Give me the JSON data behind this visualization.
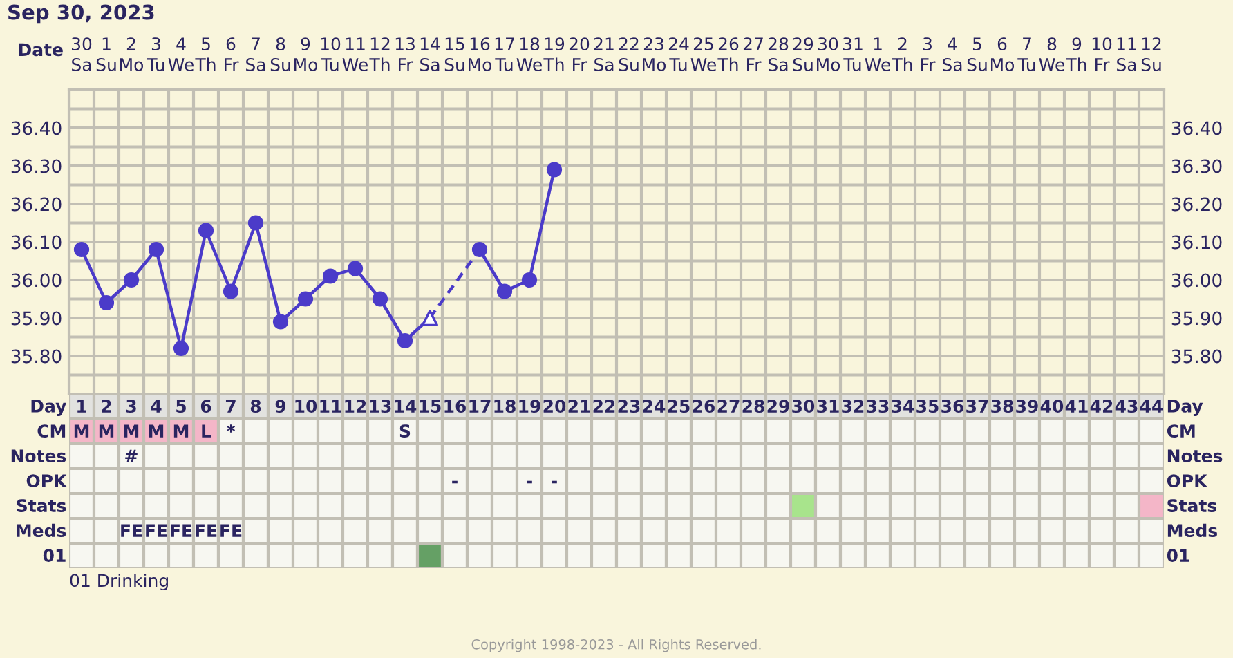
{
  "chart_data": [
    {
      "type": "line",
      "title": "Sep 30, 2023",
      "xlabel": "Date",
      "categories": [
        "30\nSa",
        "1\nSu",
        "2\nMo",
        "3\nTu",
        "4\nWe",
        "5\nTh",
        "6\nFr",
        "7\nSa",
        "8\nSu",
        "9\nMo",
        "10\nTu",
        "11\nWe",
        "12\nTh",
        "13\nFr",
        "14\nSa",
        "15\nSu",
        "16\nMo",
        "17\nTu",
        "18\nWe",
        "19\nTh",
        "20\nFr",
        "21\nSa",
        "22\nSu",
        "23\nMo",
        "24\nTu",
        "25\nWe",
        "26\nTh",
        "27\nFr",
        "28\nSa",
        "29\nSu",
        "30\nMo",
        "31\nTu",
        "1\nWe",
        "2\nTh",
        "3\nFr",
        "4\nSa",
        "5\nSu",
        "6\nMo",
        "7\nTu",
        "8\nWe",
        "9\nTh",
        "10\nFr",
        "11\nSa",
        "12\nSu"
      ],
      "series": [
        {
          "color": "#4b3bc9",
          "marker": "circle",
          "line_style": "solid",
          "values": [
            36.08,
            35.94,
            36.0,
            36.08,
            35.82,
            36.13,
            35.97,
            36.15,
            35.89,
            35.95,
            36.01,
            36.03,
            35.95,
            35.84,
            null,
            null,
            null,
            null,
            null,
            null,
            null,
            null,
            null,
            null,
            null,
            null,
            null,
            null,
            null,
            null,
            null,
            null,
            null,
            null,
            null,
            null,
            null,
            null,
            null,
            null,
            null,
            null,
            null,
            null
          ]
        },
        {
          "color": "#4b3bc9",
          "marker": "circle",
          "line_style": "solid",
          "values": [
            null,
            null,
            null,
            null,
            null,
            null,
            null,
            null,
            null,
            null,
            null,
            null,
            null,
            null,
            null,
            null,
            36.08,
            35.97,
            36.0,
            36.29,
            null,
            null,
            null,
            null,
            null,
            null,
            null,
            null,
            null,
            null,
            null,
            null,
            null,
            null,
            null,
            null,
            null,
            null,
            null,
            null,
            null,
            null,
            null,
            null
          ]
        },
        {
          "color": "#4b3bc9",
          "line_style": "solid",
          "values": [
            null,
            null,
            null,
            null,
            null,
            null,
            null,
            null,
            null,
            null,
            null,
            null,
            null,
            35.84,
            35.9,
            null,
            null,
            null,
            null,
            null,
            null,
            null,
            null,
            null,
            null,
            null,
            null,
            null,
            null,
            null,
            null,
            null,
            null,
            null,
            null,
            null,
            null,
            null,
            null,
            null,
            null,
            null,
            null,
            null
          ]
        },
        {
          "color": "#4b3bc9",
          "line_style": "dashed",
          "values": [
            null,
            null,
            null,
            null,
            null,
            null,
            null,
            null,
            null,
            null,
            null,
            null,
            null,
            null,
            35.9,
            null,
            36.08,
            null,
            null,
            null,
            null,
            null,
            null,
            null,
            null,
            null,
            null,
            null,
            null,
            null,
            null,
            null,
            null,
            null,
            null,
            null,
            null,
            null,
            null,
            null,
            null,
            null,
            null,
            null
          ]
        },
        {
          "type": "scatter",
          "color": "#4b3bc9",
          "marker": "triangle",
          "values": [
            null,
            null,
            null,
            null,
            null,
            null,
            null,
            null,
            null,
            null,
            null,
            null,
            null,
            null,
            35.9,
            null,
            null,
            null,
            null,
            null,
            null,
            null,
            null,
            null,
            null,
            null,
            null,
            null,
            null,
            null,
            null,
            null,
            null,
            null,
            null,
            null,
            null,
            null,
            null,
            null,
            null,
            null,
            null,
            null
          ]
        }
      ],
      "ylim": [
        35.7,
        36.5
      ],
      "yticks": [
        {
          "value": 35.75,
          "label": null
        },
        {
          "value": 35.8,
          "label": "35.80"
        },
        {
          "value": 35.85,
          "label": null
        },
        {
          "value": 35.9,
          "label": "35.90"
        },
        {
          "value": 35.95,
          "label": null
        },
        {
          "value": 36.0,
          "label": "36.00"
        },
        {
          "value": 36.05,
          "label": null
        },
        {
          "value": 36.1,
          "label": "36.10"
        },
        {
          "value": 36.15,
          "label": null
        },
        {
          "value": 36.2,
          "label": "36.20"
        },
        {
          "value": 36.25,
          "label": null
        },
        {
          "value": 36.3,
          "label": "36.30"
        },
        {
          "value": 36.35,
          "label": null
        },
        {
          "value": 36.4,
          "label": "36.40"
        },
        {
          "value": 36.45,
          "label": null
        }
      ],
      "y2lim": [
        35.7,
        36.5
      ],
      "y2ticks": [
        {
          "value": 35.8,
          "label": "35.80"
        },
        {
          "value": 35.9,
          "label": "35.90"
        },
        {
          "value": 36.0,
          "label": "36.00"
        },
        {
          "value": 36.1,
          "label": "36.10"
        },
        {
          "value": 36.2,
          "label": "36.20"
        },
        {
          "value": 36.3,
          "label": "36.30"
        },
        {
          "value": 36.4,
          "label": "36.40"
        }
      ],
      "grid": true
    },
    {
      "type": "heatmap",
      "xlabel": "Day",
      "categories": [
        "1",
        "2",
        "3",
        "4",
        "5",
        "6",
        "7",
        "8",
        "9",
        "10",
        "11",
        "12",
        "13",
        "14",
        "15",
        "16",
        "17",
        "18",
        "19",
        "20",
        "21",
        "22",
        "23",
        "24",
        "25",
        "26",
        "27",
        "28",
        "29",
        "30",
        "31",
        "32",
        "33",
        "34",
        "35",
        "36",
        "37",
        "38",
        "39",
        "40",
        "41",
        "42",
        "43",
        "44"
      ],
      "y_categories": [
        "CM",
        "Notes",
        "OPK",
        "Stats",
        "Meds",
        "01"
      ],
      "y2_categories": [
        "CM",
        "Notes",
        "OPK",
        "Stats",
        "Meds",
        "01"
      ],
      "cells": [
        [
          null,
          null,
          null,
          null,
          null,
          null,
          null,
          null,
          null,
          null,
          null,
          null,
          null,
          null,
          null,
          null,
          null,
          null,
          null,
          null,
          null,
          null,
          null,
          null,
          null,
          null,
          null,
          null,
          null,
          null,
          null,
          null,
          null,
          null,
          null,
          null,
          null,
          null,
          null,
          null,
          null,
          null,
          null,
          null
        ],
        [
          null,
          null,
          null,
          null,
          null,
          null,
          null,
          null,
          null,
          null,
          null,
          null,
          null,
          null,
          null,
          null,
          null,
          null,
          null,
          null,
          null,
          null,
          null,
          null,
          null,
          null,
          null,
          null,
          null,
          null,
          null,
          null,
          null,
          null,
          null,
          null,
          null,
          null,
          null,
          null,
          null,
          null,
          null,
          null
        ],
        [
          null,
          null,
          null,
          null,
          null,
          null,
          null,
          null,
          null,
          null,
          null,
          null,
          null,
          null,
          null,
          null,
          null,
          null,
          null,
          null,
          null,
          null,
          null,
          null,
          null,
          null,
          null,
          null,
          null,
          null,
          null,
          null,
          null,
          null,
          null,
          null,
          null,
          null,
          null,
          null,
          null,
          null,
          null,
          null
        ],
        [
          null,
          null,
          null,
          null,
          null,
          null,
          null,
          null,
          null,
          null,
          null,
          null,
          null,
          null,
          null,
          null,
          null,
          null,
          null,
          null,
          null,
          null,
          null,
          null,
          null,
          null,
          null,
          null,
          null,
          null,
          null,
          null,
          null,
          null,
          null,
          null,
          null,
          null,
          null,
          null,
          null,
          null,
          null,
          null
        ],
        [
          null,
          null,
          null,
          null,
          null,
          null,
          null,
          null,
          null,
          null,
          null,
          null,
          null,
          null,
          null,
          null,
          null,
          null,
          null,
          null,
          null,
          null,
          null,
          null,
          null,
          null,
          null,
          null,
          null,
          null,
          null,
          null,
          null,
          null,
          null,
          null,
          null,
          null,
          null,
          null,
          null,
          null,
          null,
          null
        ],
        [
          null,
          null,
          null,
          null,
          null,
          null,
          null,
          null,
          null,
          null,
          null,
          null,
          null,
          null,
          null,
          null,
          null,
          null,
          null,
          null,
          null,
          null,
          null,
          null,
          null,
          null,
          null,
          null,
          null,
          null,
          null,
          null,
          null,
          null,
          null,
          null,
          null,
          null,
          null,
          null,
          null,
          null,
          null,
          null
        ]
      ],
      "cell_labels": [
        [
          "M",
          "M",
          "M",
          "M",
          "M",
          "L",
          "*",
          null,
          null,
          null,
          null,
          null,
          null,
          "S",
          null,
          null,
          null,
          null,
          null,
          null,
          null,
          null,
          null,
          null,
          null,
          null,
          null,
          null,
          null,
          null,
          null,
          null,
          null,
          null,
          null,
          null,
          null,
          null,
          null,
          null,
          null,
          null,
          null,
          null
        ],
        [
          null,
          null,
          "#",
          null,
          null,
          null,
          null,
          null,
          null,
          null,
          null,
          null,
          null,
          null,
          null,
          null,
          null,
          null,
          null,
          null,
          null,
          null,
          null,
          null,
          null,
          null,
          null,
          null,
          null,
          null,
          null,
          null,
          null,
          null,
          null,
          null,
          null,
          null,
          null,
          null,
          null,
          null,
          null,
          null
        ],
        [
          null,
          null,
          null,
          null,
          null,
          null,
          null,
          null,
          null,
          null,
          null,
          null,
          null,
          null,
          null,
          "-",
          null,
          null,
          "-",
          "-",
          null,
          null,
          null,
          null,
          null,
          null,
          null,
          null,
          null,
          null,
          null,
          null,
          null,
          null,
          null,
          null,
          null,
          null,
          null,
          null,
          null,
          null,
          null,
          null
        ],
        [
          null,
          null,
          null,
          null,
          null,
          null,
          null,
          null,
          null,
          null,
          null,
          null,
          null,
          null,
          null,
          null,
          null,
          null,
          null,
          null,
          null,
          null,
          null,
          null,
          null,
          null,
          null,
          null,
          null,
          null,
          null,
          null,
          null,
          null,
          null,
          null,
          null,
          null,
          null,
          null,
          null,
          null,
          null,
          null
        ],
        [
          null,
          null,
          "FE",
          "FE",
          "FE",
          "FE",
          "FE",
          null,
          null,
          null,
          null,
          null,
          null,
          null,
          null,
          null,
          null,
          null,
          null,
          null,
          null,
          null,
          null,
          null,
          null,
          null,
          null,
          null,
          null,
          null,
          null,
          null,
          null,
          null,
          null,
          null,
          null,
          null,
          null,
          null,
          null,
          null,
          null,
          null
        ],
        [
          null,
          null,
          null,
          null,
          null,
          null,
          null,
          null,
          null,
          null,
          null,
          null,
          null,
          null,
          null,
          null,
          null,
          null,
          null,
          null,
          null,
          null,
          null,
          null,
          null,
          null,
          null,
          null,
          null,
          null,
          null,
          null,
          null,
          null,
          null,
          null,
          null,
          null,
          null,
          null,
          null,
          null,
          null,
          null
        ]
      ],
      "colors": [
        [
          "#f4b6c8",
          "#f4b6c8",
          "#f4b6c8",
          "#f4b6c8",
          "#f4b6c8",
          "#f4b6c8",
          null,
          null,
          null,
          null,
          null,
          null,
          null,
          null,
          null,
          null,
          null,
          null,
          null,
          null,
          null,
          null,
          null,
          null,
          null,
          null,
          null,
          null,
          null,
          null,
          null,
          null,
          null,
          null,
          null,
          null,
          null,
          null,
          null,
          null,
          null,
          null,
          null,
          null
        ],
        [
          null,
          null,
          null,
          null,
          null,
          null,
          null,
          null,
          null,
          null,
          null,
          null,
          null,
          null,
          null,
          null,
          null,
          null,
          null,
          null,
          null,
          null,
          null,
          null,
          null,
          null,
          null,
          null,
          null,
          null,
          null,
          null,
          null,
          null,
          null,
          null,
          null,
          null,
          null,
          null,
          null,
          null,
          null,
          null
        ],
        [
          null,
          null,
          null,
          null,
          null,
          null,
          null,
          null,
          null,
          null,
          null,
          null,
          null,
          null,
          null,
          null,
          null,
          null,
          null,
          null,
          null,
          null,
          null,
          null,
          null,
          null,
          null,
          null,
          null,
          null,
          null,
          null,
          null,
          null,
          null,
          null,
          null,
          null,
          null,
          null,
          null,
          null,
          null,
          null
        ],
        [
          null,
          null,
          null,
          null,
          null,
          null,
          null,
          null,
          null,
          null,
          null,
          null,
          null,
          null,
          null,
          null,
          null,
          null,
          null,
          null,
          null,
          null,
          null,
          null,
          null,
          null,
          null,
          null,
          null,
          "#a8e48c",
          null,
          null,
          null,
          null,
          null,
          null,
          null,
          null,
          null,
          null,
          null,
          null,
          null,
          "#f4b6c8"
        ],
        [
          null,
          null,
          null,
          null,
          null,
          null,
          null,
          null,
          null,
          null,
          null,
          null,
          null,
          null,
          null,
          null,
          null,
          null,
          null,
          null,
          null,
          null,
          null,
          null,
          null,
          null,
          null,
          null,
          null,
          null,
          null,
          null,
          null,
          null,
          null,
          null,
          null,
          null,
          null,
          null,
          null,
          null,
          null,
          null
        ],
        [
          null,
          null,
          null,
          null,
          null,
          null,
          null,
          null,
          null,
          null,
          null,
          null,
          null,
          null,
          "#65a065",
          null,
          null,
          null,
          null,
          null,
          null,
          null,
          null,
          null,
          null,
          null,
          null,
          null,
          null,
          null,
          null,
          null,
          null,
          null,
          null,
          null,
          null,
          null,
          null,
          null,
          null,
          null,
          null,
          null
        ]
      ],
      "annotations": [
        "01 Drinking",
        "Copyright 1998-2023 - All Rights Reserved."
      ]
    }
  ]
}
